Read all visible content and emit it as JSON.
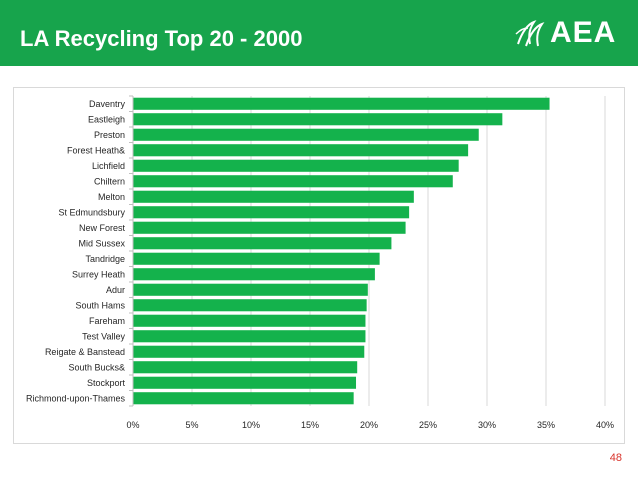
{
  "header": {
    "title": "LA Recycling Top 20 - 2000"
  },
  "logo": {
    "text": "AEA",
    "icon": "aea-swirl-logo-icon"
  },
  "page_number": "48",
  "colors": {
    "header_bg": "#17a44c",
    "bar": "#14b24c",
    "page_number": "#d9332b"
  },
  "chart_data": {
    "type": "bar",
    "orientation": "horizontal",
    "title": "",
    "xlabel": "",
    "ylabel": "",
    "categories": [
      "Daventry",
      "Eastleigh",
      "Preston",
      "Forest Heath&",
      "Lichfield",
      "Chiltern",
      "Melton",
      "St Edmundsbury",
      "New Forest",
      "Mid Sussex",
      "Tandridge",
      "Surrey Heath",
      "Adur",
      "South Hams",
      "Fareham",
      "Test Valley",
      "Reigate & Banstead",
      "South Bucks&",
      "Stockport",
      "Richmond-upon-Thames"
    ],
    "values": [
      0.353,
      0.313,
      0.293,
      0.284,
      0.276,
      0.271,
      0.238,
      0.234,
      0.231,
      0.219,
      0.209,
      0.205,
      0.199,
      0.198,
      0.197,
      0.197,
      0.196,
      0.19,
      0.189,
      0.187
    ],
    "xlim": [
      0,
      0.4
    ],
    "xticks": [
      0,
      0.05,
      0.1,
      0.15,
      0.2,
      0.25,
      0.3,
      0.35,
      0.4
    ],
    "xtick_labels": [
      "0%",
      "5%",
      "10%",
      "15%",
      "20%",
      "25%",
      "30%",
      "35%",
      "40%"
    ],
    "grid": true,
    "legend": "none"
  }
}
